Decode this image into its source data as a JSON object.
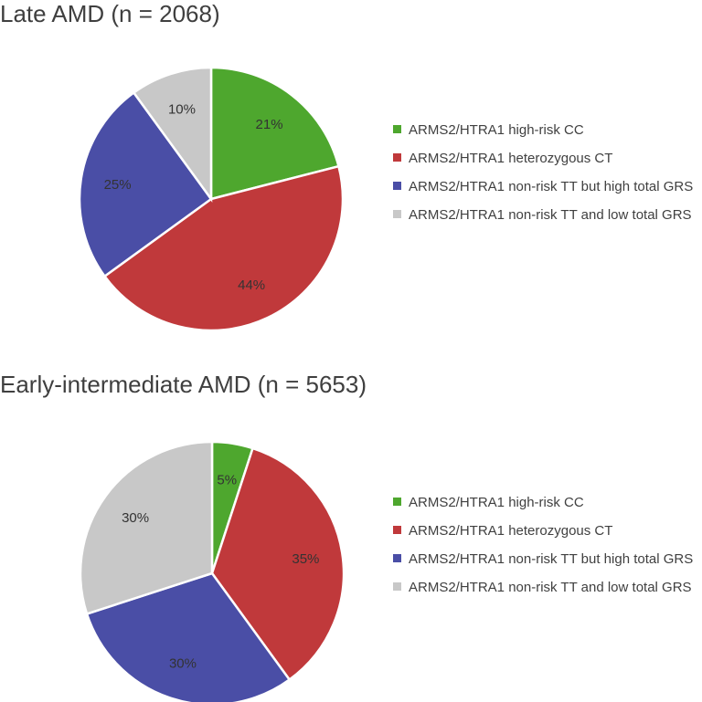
{
  "chart_data": [
    {
      "type": "pie",
      "title": "Late AMD (n = 2068)",
      "categories": [
        "ARMS2/HTRA1 high-risk CC",
        "ARMS2/HTRA1 heterozygous CT",
        "ARMS2/HTRA1 non-risk TT but high total GRS",
        "ARMS2/HTRA1 non-risk TT and low total GRS"
      ],
      "values": [
        21,
        44,
        25,
        10
      ],
      "labels": [
        "21%",
        "44%",
        "25%",
        "10%"
      ],
      "colors": [
        "#4ea72e",
        "#c0393b",
        "#4a4ea6",
        "#c8c8c8"
      ],
      "legend_position": "right"
    },
    {
      "type": "pie",
      "title": "Early-intermediate AMD (n = 5653)",
      "categories": [
        "ARMS2/HTRA1 high-risk CC",
        "ARMS2/HTRA1 heterozygous CT",
        "ARMS2/HTRA1 non-risk TT but high total GRS",
        "ARMS2/HTRA1 non-risk TT and low total GRS"
      ],
      "values": [
        5,
        35,
        30,
        30
      ],
      "labels": [
        "5%",
        "35%",
        "30%",
        "30%"
      ],
      "colors": [
        "#4ea72e",
        "#c0393b",
        "#4a4ea6",
        "#c8c8c8"
      ],
      "legend_position": "right"
    }
  ]
}
